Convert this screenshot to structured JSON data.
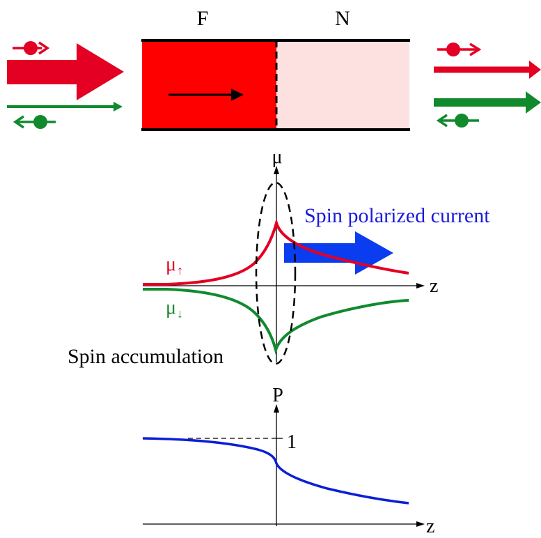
{
  "labels": {
    "ferromagnet": "F",
    "normal_metal": "N",
    "mu_axis": "μ",
    "mu_up": "μ",
    "mu_up_sub": "↑",
    "mu_down": "μ",
    "mu_down_sub": "↓",
    "z_axis_top": "z",
    "spin_current": "Spin polarized current",
    "spin_accumulation": "Spin accumulation",
    "p_axis": "P",
    "p_one": "1",
    "z_axis_bottom": "z"
  },
  "colors": {
    "ferro_fill": "#ff0000",
    "normal_fill": "#fde0e0",
    "spin_up": "#e30022",
    "spin_down": "#118a2e",
    "current_arrow": "#0a3cf0",
    "current_text": "#1a1adc",
    "polarization": "#0b1fd6"
  }
}
